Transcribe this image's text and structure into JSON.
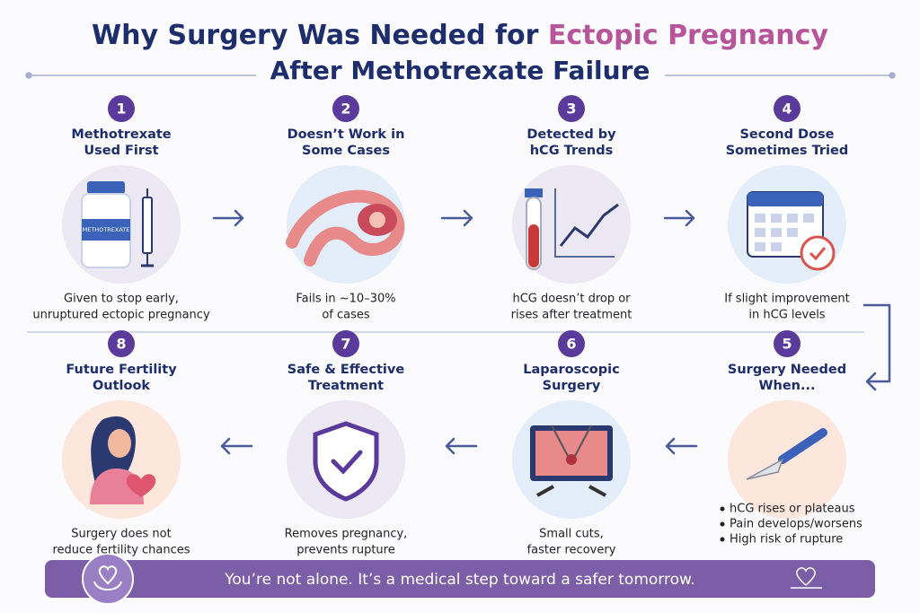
{
  "header": {
    "title_start": "Why Surgery Was Needed for ",
    "title_highlight": "Ectopic Pregnancy",
    "title_line2": "After Methotrexate Failure"
  },
  "bottle_label": "METHOTREXATE",
  "steps": [
    {
      "number": 1,
      "title": [
        "Methotrexate",
        "Used First"
      ],
      "description": [
        "Given to stop early,",
        "unruptured ectopic pregnancy"
      ]
    },
    {
      "number": 2,
      "title": [
        "Doesn’t Work in",
        "Some Cases"
      ],
      "description": [
        "Fails in ~10–30%",
        "of cases"
      ]
    },
    {
      "number": 3,
      "title": [
        "Detected by",
        "hCG Trends"
      ],
      "description": [
        "hCG doesn’t drop or",
        "rises after treatment"
      ]
    },
    {
      "number": 4,
      "title": [
        "Second Dose",
        "Sometimes Tried"
      ],
      "description": [
        "If slight improvement",
        "in hCG levels"
      ]
    },
    {
      "number": 5,
      "title": [
        "Surgery Needed",
        "When..."
      ],
      "bullets": [
        "hCG rises or plateaus",
        "Pain develops/worsens",
        "High risk of rupture"
      ]
    },
    {
      "number": 6,
      "title": [
        "Laparoscopic",
        "Surgery"
      ],
      "description": [
        "Small cuts,",
        "faster recovery"
      ]
    },
    {
      "number": 7,
      "title": [
        "Safe & Effective",
        "Treatment"
      ],
      "description": [
        "Removes pregnancy,",
        "prevents rupture"
      ]
    },
    {
      "number": 8,
      "title": [
        "Future Fertility",
        "Outlook"
      ],
      "description": [
        "Surgery does not",
        "reduce fertility chances"
      ]
    }
  ],
  "footer": "You’re not alone. It’s a medical step toward a safer tomorrow."
}
